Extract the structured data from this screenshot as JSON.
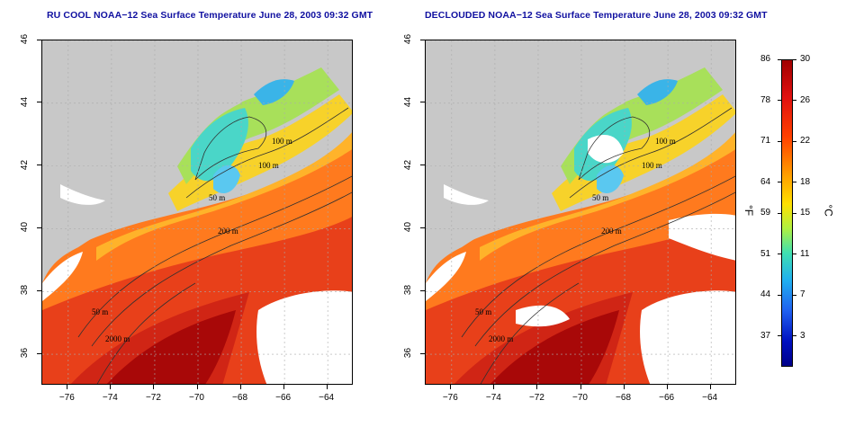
{
  "panels": [
    {
      "title": "RU COOL NOAA−12 Sea Surface Temperature June 28, 2003 09:32 GMT"
    },
    {
      "title": "DECLOUDED NOAA−12 Sea Surface Temperature June 28, 2003 09:32 GMT"
    }
  ],
  "axes": {
    "x_ticks": [
      "−76",
      "−74",
      "−72",
      "−70",
      "−68",
      "−66",
      "−64"
    ],
    "x_values": [
      -76,
      -74,
      -72,
      -70,
      -68,
      -66,
      -64
    ],
    "x_range": [
      -77.2,
      -62.8
    ],
    "y_ticks": [
      "36",
      "38",
      "40",
      "42",
      "44",
      "46"
    ],
    "y_values": [
      36,
      38,
      40,
      42,
      44,
      46
    ],
    "y_range": [
      35,
      46
    ]
  },
  "contour_labels": [
    "100 m",
    "100 m",
    "50 m",
    "200 m",
    "50 m",
    "2000 m"
  ],
  "colorbar": {
    "fahrenheit_labels": [
      "86",
      "78",
      "71",
      "64",
      "59",
      "51",
      "44",
      "37"
    ],
    "celsius_labels": [
      "30",
      "26",
      "22",
      "18",
      "15",
      "11",
      "7",
      "3"
    ],
    "celsius_values": [
      30,
      26,
      22,
      18,
      15,
      11,
      7,
      3
    ],
    "range_c": [
      0,
      30
    ],
    "unit_f": "°F",
    "unit_c": "°C"
  },
  "colors": {
    "land": "#c8c8c8",
    "cloud": "#ffffff",
    "cold": "#0000a0",
    "warm": "#a00000"
  }
}
